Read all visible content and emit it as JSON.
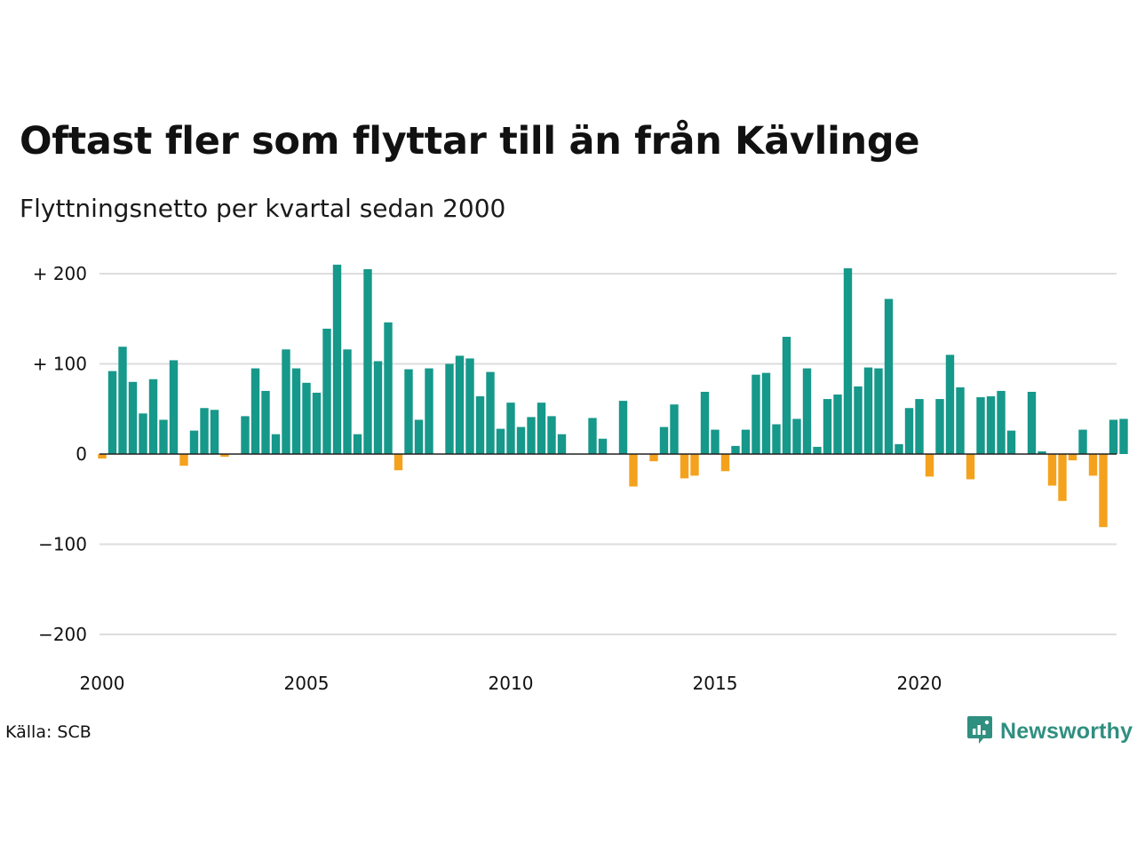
{
  "title": "Oftast fler som flyttar till än från Kävlinge",
  "subtitle": "Flyttningsnetto per kvartal sedan 2000",
  "source": "Källa: SCB",
  "brand": {
    "name": "Newsworthy",
    "icon": "newsworthy-logo-icon"
  },
  "colors": {
    "positive": "#16988a",
    "negative": "#f4a21e",
    "grid": "#dddddd",
    "zero_line": "#222222"
  },
  "chart_data": {
    "type": "bar",
    "title": "",
    "xlabel": "",
    "ylabel": "",
    "x_start": 2000.0,
    "x_step": 0.25,
    "ylim": [
      -200,
      220
    ],
    "xlim": [
      2000,
      2024.75
    ],
    "y_ticks": [
      {
        "value": 200,
        "label": "+ 200"
      },
      {
        "value": 100,
        "label": "+ 100"
      },
      {
        "value": 0,
        "label": "0"
      },
      {
        "value": -100,
        "label": "−100"
      },
      {
        "value": -200,
        "label": "−200"
      }
    ],
    "x_ticks": [
      {
        "value": 2000,
        "label": "2000"
      },
      {
        "value": 2005,
        "label": "2005"
      },
      {
        "value": 2010,
        "label": "2010"
      },
      {
        "value": 2015,
        "label": "2015"
      },
      {
        "value": 2020,
        "label": "2020"
      }
    ],
    "grid": true,
    "values": [
      -5,
      92,
      119,
      80,
      45,
      83,
      38,
      104,
      -13,
      26,
      51,
      49,
      -3,
      0,
      42,
      95,
      70,
      22,
      116,
      95,
      79,
      68,
      139,
      210,
      116,
      22,
      205,
      103,
      146,
      -18,
      94,
      38,
      95,
      0,
      100,
      109,
      106,
      64,
      91,
      28,
      57,
      30,
      41,
      57,
      42,
      22,
      0,
      0,
      40,
      17,
      0,
      59,
      -36,
      0,
      -8,
      30,
      55,
      -27,
      -24,
      69,
      27,
      -19,
      9,
      27,
      88,
      90,
      33,
      130,
      39,
      95,
      8,
      61,
      66,
      206,
      75,
      96,
      95,
      172,
      11,
      51,
      61,
      -25,
      61,
      110,
      74,
      -28,
      63,
      64,
      70,
      26,
      0,
      69,
      3,
      -35,
      -52,
      -7,
      27,
      -24,
      -81,
      38,
      39
    ]
  }
}
